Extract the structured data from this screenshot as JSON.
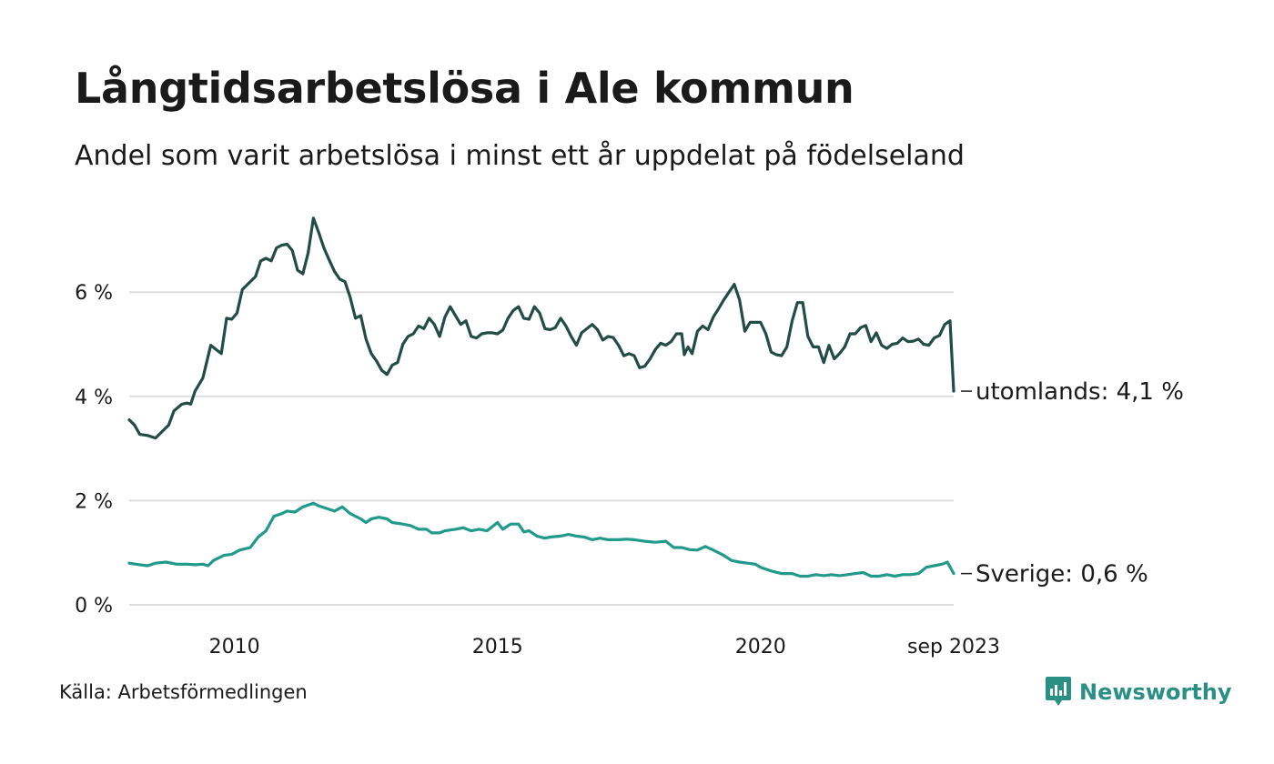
{
  "header": {
    "title": "Långtidsarbetslösa i Ale kommun",
    "subtitle": "Andel som varit arbetslösa i minst ett år uppdelat på födelseland"
  },
  "footer": {
    "source": "Källa: Arbetsförmedlingen",
    "brand": "Newsworthy"
  },
  "colors": {
    "utomlands": "#234c44",
    "sverige": "#219a8c",
    "grid": "#dddddd",
    "brand": "#2a8f84"
  },
  "chart_data": {
    "type": "line",
    "title": "Långtidsarbetslösa i Ale kommun",
    "subtitle": "Andel som varit arbetslösa i minst ett år uppdelat på födelseland",
    "xlabel": "",
    "ylabel": "",
    "x_start": "2008-01",
    "x_end": "2023-09",
    "frequency": "monthly",
    "xlim": [
      2008.0,
      2023.67
    ],
    "ylim": [
      0,
      7.5
    ],
    "y_ticks": [
      {
        "value": 0,
        "label": "0 %"
      },
      {
        "value": 2,
        "label": "2 %"
      },
      {
        "value": 4,
        "label": "4 %"
      },
      {
        "value": 6,
        "label": "6 %"
      }
    ],
    "x_ticks": [
      {
        "value": 2010,
        "label": "2010"
      },
      {
        "value": 2015,
        "label": "2015"
      },
      {
        "value": 2020,
        "label": "2020"
      },
      {
        "value": 2023.67,
        "label": "sep 2023"
      }
    ],
    "grid": true,
    "series": [
      {
        "name": "utomlands",
        "end_label": "utomlands: 4,1 %",
        "color": "#234c44",
        "points": [
          [
            2008.0,
            3.55
          ],
          [
            2008.1,
            3.45
          ],
          [
            2008.2,
            3.27
          ],
          [
            2008.35,
            3.25
          ],
          [
            2008.5,
            3.2
          ],
          [
            2008.65,
            3.35
          ],
          [
            2008.75,
            3.45
          ],
          [
            2008.85,
            3.72
          ],
          [
            2009.0,
            3.85
          ],
          [
            2009.1,
            3.87
          ],
          [
            2009.17,
            3.85
          ],
          [
            2009.25,
            4.1
          ],
          [
            2009.4,
            4.35
          ],
          [
            2009.55,
            4.98
          ],
          [
            2009.65,
            4.9
          ],
          [
            2009.75,
            4.82
          ],
          [
            2009.85,
            5.5
          ],
          [
            2009.95,
            5.48
          ],
          [
            2010.05,
            5.6
          ],
          [
            2010.15,
            6.05
          ],
          [
            2010.25,
            6.15
          ],
          [
            2010.4,
            6.3
          ],
          [
            2010.5,
            6.6
          ],
          [
            2010.6,
            6.65
          ],
          [
            2010.7,
            6.6
          ],
          [
            2010.8,
            6.85
          ],
          [
            2010.9,
            6.9
          ],
          [
            2011.0,
            6.92
          ],
          [
            2011.1,
            6.8
          ],
          [
            2011.2,
            6.42
          ],
          [
            2011.3,
            6.35
          ],
          [
            2011.4,
            6.75
          ],
          [
            2011.5,
            7.42
          ],
          [
            2011.6,
            7.15
          ],
          [
            2011.7,
            6.85
          ],
          [
            2011.8,
            6.62
          ],
          [
            2011.9,
            6.4
          ],
          [
            2012.0,
            6.25
          ],
          [
            2012.1,
            6.2
          ],
          [
            2012.2,
            5.9
          ],
          [
            2012.3,
            5.5
          ],
          [
            2012.4,
            5.55
          ],
          [
            2012.5,
            5.1
          ],
          [
            2012.6,
            4.82
          ],
          [
            2012.7,
            4.68
          ],
          [
            2012.8,
            4.5
          ],
          [
            2012.9,
            4.42
          ],
          [
            2013.0,
            4.6
          ],
          [
            2013.1,
            4.65
          ],
          [
            2013.2,
            5.0
          ],
          [
            2013.3,
            5.15
          ],
          [
            2013.4,
            5.2
          ],
          [
            2013.5,
            5.35
          ],
          [
            2013.6,
            5.3
          ],
          [
            2013.7,
            5.5
          ],
          [
            2013.8,
            5.38
          ],
          [
            2013.9,
            5.15
          ],
          [
            2014.0,
            5.52
          ],
          [
            2014.1,
            5.72
          ],
          [
            2014.2,
            5.55
          ],
          [
            2014.3,
            5.38
          ],
          [
            2014.4,
            5.45
          ],
          [
            2014.5,
            5.15
          ],
          [
            2014.6,
            5.12
          ],
          [
            2014.7,
            5.2
          ],
          [
            2014.8,
            5.22
          ],
          [
            2014.9,
            5.22
          ],
          [
            2015.0,
            5.2
          ],
          [
            2015.1,
            5.27
          ],
          [
            2015.2,
            5.5
          ],
          [
            2015.3,
            5.65
          ],
          [
            2015.4,
            5.72
          ],
          [
            2015.5,
            5.5
          ],
          [
            2015.6,
            5.48
          ],
          [
            2015.7,
            5.72
          ],
          [
            2015.8,
            5.6
          ],
          [
            2015.9,
            5.3
          ],
          [
            2016.0,
            5.28
          ],
          [
            2016.1,
            5.32
          ],
          [
            2016.2,
            5.5
          ],
          [
            2016.3,
            5.35
          ],
          [
            2016.4,
            5.15
          ],
          [
            2016.5,
            4.98
          ],
          [
            2016.6,
            5.22
          ],
          [
            2016.7,
            5.3
          ],
          [
            2016.8,
            5.38
          ],
          [
            2016.9,
            5.28
          ],
          [
            2017.0,
            5.08
          ],
          [
            2017.1,
            5.15
          ],
          [
            2017.2,
            5.13
          ],
          [
            2017.3,
            4.98
          ],
          [
            2017.4,
            4.78
          ],
          [
            2017.5,
            4.82
          ],
          [
            2017.6,
            4.78
          ],
          [
            2017.7,
            4.55
          ],
          [
            2017.8,
            4.58
          ],
          [
            2017.9,
            4.72
          ],
          [
            2018.0,
            4.9
          ],
          [
            2018.1,
            5.02
          ],
          [
            2018.2,
            4.98
          ],
          [
            2018.3,
            5.05
          ],
          [
            2018.4,
            5.2
          ],
          [
            2018.5,
            5.2
          ],
          [
            2018.55,
            4.8
          ],
          [
            2018.62,
            4.95
          ],
          [
            2018.7,
            4.82
          ],
          [
            2018.8,
            5.25
          ],
          [
            2018.9,
            5.35
          ],
          [
            2019.0,
            5.28
          ],
          [
            2019.1,
            5.52
          ],
          [
            2019.2,
            5.68
          ],
          [
            2019.3,
            5.85
          ],
          [
            2019.4,
            6.0
          ],
          [
            2019.5,
            6.15
          ],
          [
            2019.6,
            5.85
          ],
          [
            2019.7,
            5.25
          ],
          [
            2019.8,
            5.42
          ],
          [
            2019.9,
            5.42
          ],
          [
            2020.0,
            5.42
          ],
          [
            2020.1,
            5.2
          ],
          [
            2020.2,
            4.85
          ],
          [
            2020.3,
            4.8
          ],
          [
            2020.4,
            4.78
          ],
          [
            2020.5,
            4.95
          ],
          [
            2020.6,
            5.45
          ],
          [
            2020.7,
            5.8
          ],
          [
            2020.8,
            5.8
          ],
          [
            2020.9,
            5.15
          ],
          [
            2021.0,
            4.95
          ],
          [
            2021.1,
            4.95
          ],
          [
            2021.2,
            4.65
          ],
          [
            2021.3,
            4.98
          ],
          [
            2021.4,
            4.72
          ],
          [
            2021.5,
            4.82
          ],
          [
            2021.6,
            4.95
          ],
          [
            2021.7,
            5.2
          ],
          [
            2021.8,
            5.2
          ],
          [
            2021.9,
            5.32
          ],
          [
            2022.0,
            5.36
          ],
          [
            2022.1,
            5.05
          ],
          [
            2022.2,
            5.22
          ],
          [
            2022.3,
            4.98
          ],
          [
            2022.4,
            4.92
          ],
          [
            2022.5,
            5.0
          ],
          [
            2022.6,
            5.02
          ],
          [
            2022.7,
            5.12
          ],
          [
            2022.8,
            5.05
          ],
          [
            2022.9,
            5.06
          ],
          [
            2023.0,
            5.1
          ],
          [
            2023.1,
            5.0
          ],
          [
            2023.2,
            4.98
          ],
          [
            2023.3,
            5.12
          ],
          [
            2023.4,
            5.17
          ],
          [
            2023.5,
            5.38
          ],
          [
            2023.6,
            5.45
          ],
          [
            2023.67,
            4.1
          ]
        ]
      },
      {
        "name": "Sverige",
        "end_label": "Sverige: 0,6 %",
        "color": "#219a8c",
        "points": [
          [
            2008.0,
            0.8
          ],
          [
            2008.2,
            0.77
          ],
          [
            2008.35,
            0.75
          ],
          [
            2008.5,
            0.8
          ],
          [
            2008.7,
            0.82
          ],
          [
            2008.9,
            0.78
          ],
          [
            2009.1,
            0.78
          ],
          [
            2009.25,
            0.77
          ],
          [
            2009.4,
            0.78
          ],
          [
            2009.5,
            0.75
          ],
          [
            2009.6,
            0.85
          ],
          [
            2009.8,
            0.95
          ],
          [
            2009.95,
            0.97
          ],
          [
            2010.1,
            1.05
          ],
          [
            2010.3,
            1.1
          ],
          [
            2010.45,
            1.3
          ],
          [
            2010.6,
            1.42
          ],
          [
            2010.75,
            1.7
          ],
          [
            2010.9,
            1.75
          ],
          [
            2011.0,
            1.8
          ],
          [
            2011.15,
            1.78
          ],
          [
            2011.3,
            1.88
          ],
          [
            2011.5,
            1.95
          ],
          [
            2011.6,
            1.9
          ],
          [
            2011.75,
            1.85
          ],
          [
            2011.9,
            1.8
          ],
          [
            2012.05,
            1.88
          ],
          [
            2012.2,
            1.75
          ],
          [
            2012.4,
            1.65
          ],
          [
            2012.5,
            1.58
          ],
          [
            2012.6,
            1.65
          ],
          [
            2012.75,
            1.68
          ],
          [
            2012.9,
            1.65
          ],
          [
            2013.0,
            1.58
          ],
          [
            2013.2,
            1.55
          ],
          [
            2013.35,
            1.52
          ],
          [
            2013.5,
            1.45
          ],
          [
            2013.65,
            1.45
          ],
          [
            2013.75,
            1.38
          ],
          [
            2013.9,
            1.38
          ],
          [
            2014.0,
            1.42
          ],
          [
            2014.2,
            1.45
          ],
          [
            2014.35,
            1.48
          ],
          [
            2014.5,
            1.42
          ],
          [
            2014.65,
            1.45
          ],
          [
            2014.8,
            1.42
          ],
          [
            2015.0,
            1.58
          ],
          [
            2015.1,
            1.45
          ],
          [
            2015.25,
            1.55
          ],
          [
            2015.4,
            1.55
          ],
          [
            2015.5,
            1.4
          ],
          [
            2015.6,
            1.42
          ],
          [
            2015.75,
            1.32
          ],
          [
            2015.9,
            1.28
          ],
          [
            2016.0,
            1.3
          ],
          [
            2016.2,
            1.32
          ],
          [
            2016.35,
            1.35
          ],
          [
            2016.5,
            1.32
          ],
          [
            2016.65,
            1.3
          ],
          [
            2016.8,
            1.25
          ],
          [
            2016.95,
            1.28
          ],
          [
            2017.1,
            1.25
          ],
          [
            2017.3,
            1.25
          ],
          [
            2017.45,
            1.26
          ],
          [
            2017.6,
            1.25
          ],
          [
            2017.8,
            1.22
          ],
          [
            2018.0,
            1.2
          ],
          [
            2018.2,
            1.22
          ],
          [
            2018.35,
            1.1
          ],
          [
            2018.5,
            1.1
          ],
          [
            2018.65,
            1.06
          ],
          [
            2018.8,
            1.05
          ],
          [
            2018.95,
            1.12
          ],
          [
            2019.1,
            1.05
          ],
          [
            2019.3,
            0.95
          ],
          [
            2019.45,
            0.85
          ],
          [
            2019.6,
            0.82
          ],
          [
            2019.75,
            0.8
          ],
          [
            2019.9,
            0.78
          ],
          [
            2020.0,
            0.72
          ],
          [
            2020.2,
            0.65
          ],
          [
            2020.4,
            0.6
          ],
          [
            2020.6,
            0.6
          ],
          [
            2020.75,
            0.55
          ],
          [
            2020.9,
            0.55
          ],
          [
            2021.05,
            0.58
          ],
          [
            2021.2,
            0.56
          ],
          [
            2021.35,
            0.58
          ],
          [
            2021.5,
            0.56
          ],
          [
            2021.65,
            0.58
          ],
          [
            2021.8,
            0.6
          ],
          [
            2021.95,
            0.62
          ],
          [
            2022.1,
            0.55
          ],
          [
            2022.25,
            0.55
          ],
          [
            2022.4,
            0.58
          ],
          [
            2022.55,
            0.55
          ],
          [
            2022.7,
            0.58
          ],
          [
            2022.85,
            0.58
          ],
          [
            2023.0,
            0.6
          ],
          [
            2023.15,
            0.72
          ],
          [
            2023.3,
            0.75
          ],
          [
            2023.45,
            0.78
          ],
          [
            2023.55,
            0.82
          ],
          [
            2023.67,
            0.6
          ]
        ]
      }
    ]
  }
}
